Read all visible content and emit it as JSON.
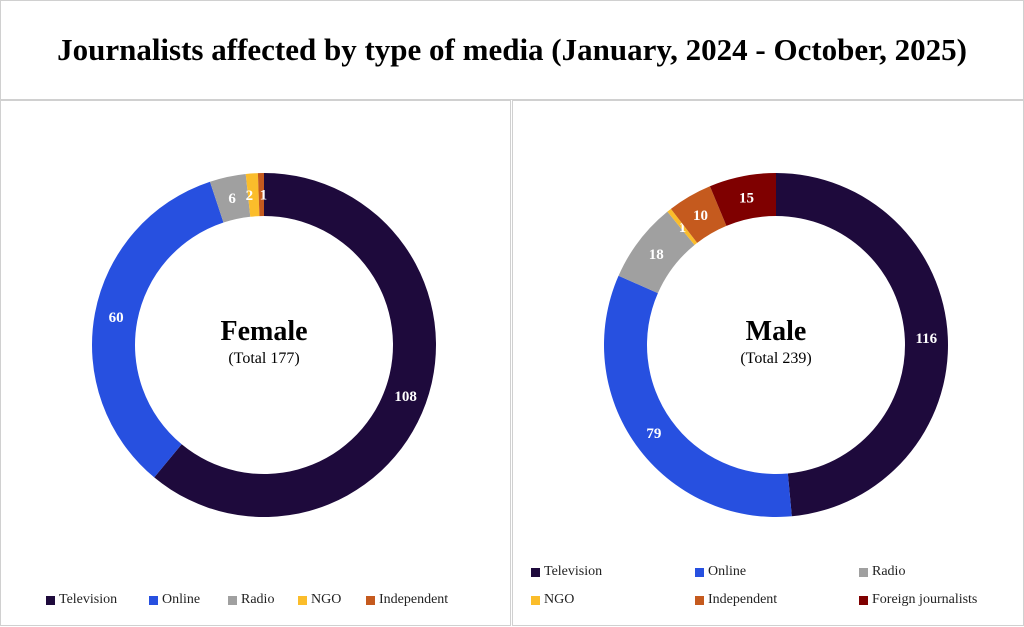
{
  "title": "Journalists affected by type of media (January, 2024 - October, 2025)",
  "chart_data": [
    {
      "type": "pie",
      "subtype": "donut",
      "center_label": "Female",
      "center_sublabel": "(Total 177)",
      "categories": [
        "Television",
        "Online",
        "Radio",
        "NGO",
        "Independent"
      ],
      "values": [
        108,
        60,
        6,
        2,
        1
      ],
      "colors": [
        "#1e0a3c",
        "#2750e0",
        "#a0a0a0",
        "#fbbd2b",
        "#c55a1e"
      ],
      "legend": "bottom"
    },
    {
      "type": "pie",
      "subtype": "donut",
      "center_label": "Male",
      "center_sublabel": "(Total 239)",
      "categories": [
        "Television",
        "Online",
        "Radio",
        "NGO",
        "Independent",
        "Foreign journalists"
      ],
      "values": [
        116,
        79,
        18,
        1,
        10,
        15
      ],
      "colors": [
        "#1e0a3c",
        "#2750e0",
        "#a0a0a0",
        "#fbbd2b",
        "#c55a1e",
        "#7f0000"
      ],
      "legend": "bottom"
    }
  ]
}
